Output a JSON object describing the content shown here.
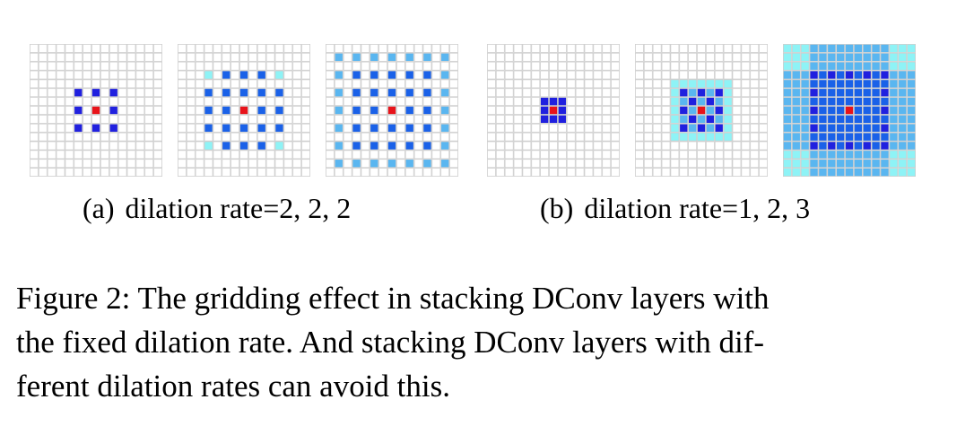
{
  "colors": {
    "center": "#e8131a",
    "dark_blue": "#2020df",
    "blue": "#1a61e8",
    "light_blue": "#5ab6f0",
    "cyan": "#8ef3f6",
    "grid_line": "#cfcfcf",
    "background": "#ffffff"
  },
  "grid_size": 15,
  "panels": [
    {
      "group": "a",
      "layer": 1,
      "cells": [
        {
          "row": 5,
          "col": 5,
          "color": "dark_blue"
        },
        {
          "row": 5,
          "col": 7,
          "color": "dark_blue"
        },
        {
          "row": 5,
          "col": 9,
          "color": "dark_blue"
        },
        {
          "row": 7,
          "col": 5,
          "color": "dark_blue"
        },
        {
          "row": 7,
          "col": 7,
          "color": "center"
        },
        {
          "row": 7,
          "col": 9,
          "color": "dark_blue"
        },
        {
          "row": 9,
          "col": 5,
          "color": "dark_blue"
        },
        {
          "row": 9,
          "col": 7,
          "color": "dark_blue"
        },
        {
          "row": 9,
          "col": 9,
          "color": "dark_blue"
        }
      ]
    },
    {
      "group": "a",
      "layer": 2,
      "rule": {
        "type": "dilated",
        "rate": 2,
        "radius": 4
      },
      "cells": [
        {
          "row": 7,
          "col": 7,
          "color": "center"
        }
      ]
    },
    {
      "group": "a",
      "layer": 3,
      "rule": {
        "type": "dilated",
        "rate": 2,
        "radius": 6
      },
      "cells": [
        {
          "row": 7,
          "col": 7,
          "color": "center"
        }
      ]
    },
    {
      "group": "b",
      "layer": 1,
      "cells": [
        {
          "row": 6,
          "col": 6,
          "color": "dark_blue"
        },
        {
          "row": 6,
          "col": 7,
          "color": "dark_blue"
        },
        {
          "row": 6,
          "col": 8,
          "color": "dark_blue"
        },
        {
          "row": 7,
          "col": 6,
          "color": "dark_blue"
        },
        {
          "row": 7,
          "col": 7,
          "color": "center"
        },
        {
          "row": 7,
          "col": 8,
          "color": "dark_blue"
        },
        {
          "row": 8,
          "col": 6,
          "color": "dark_blue"
        },
        {
          "row": 8,
          "col": 7,
          "color": "dark_blue"
        },
        {
          "row": 8,
          "col": 8,
          "color": "dark_blue"
        }
      ]
    },
    {
      "group": "b",
      "layer": 2,
      "rule": {
        "type": "block",
        "radius": 3
      },
      "cells": [
        {
          "row": 7,
          "col": 7,
          "color": "center"
        }
      ]
    },
    {
      "group": "b",
      "layer": 3,
      "rule": {
        "type": "block",
        "radius": 7
      },
      "cells": [
        {
          "row": 7,
          "col": 7,
          "color": "center"
        }
      ]
    }
  ],
  "subcaptions": [
    {
      "tag": "(a)",
      "text": "dilation rate=2, 2, 2"
    },
    {
      "tag": "(b)",
      "text": "dilation rate=1, 2, 3"
    }
  ],
  "caption": {
    "lines": [
      "Figure 2: The gridding effect in stacking DConv layers with",
      "the fixed dilation rate. And stacking DConv layers with dif-",
      "ferent dilation rates can avoid this."
    ]
  }
}
